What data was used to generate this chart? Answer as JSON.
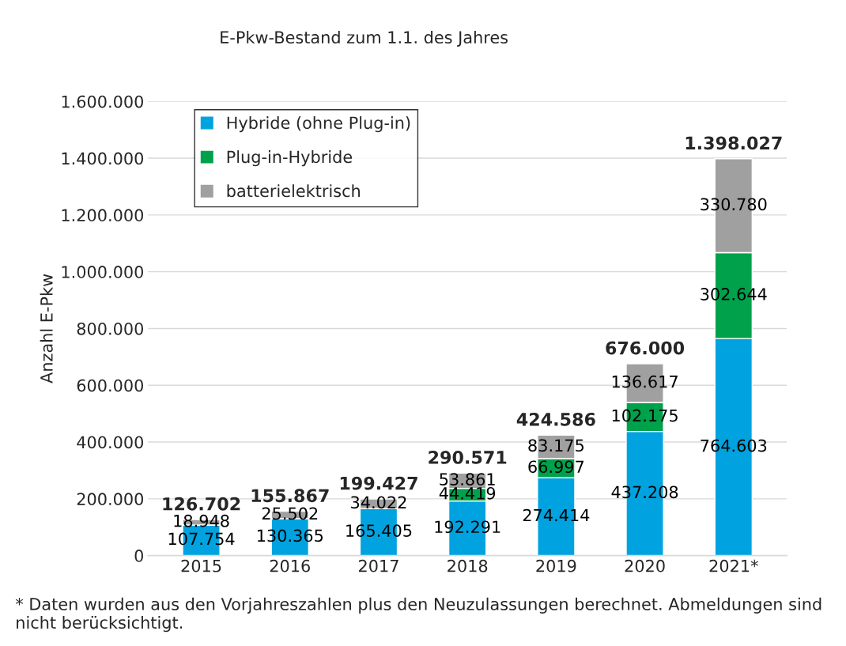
{
  "chart_data": {
    "type": "bar",
    "stacked": true,
    "title": "E-Pkw-Bestand zum 1.1. des Jahres",
    "ylabel": "Anzahl E-Pkw",
    "categories": [
      "2015",
      "2016",
      "2017",
      "2018",
      "2019",
      "2020",
      "2021*"
    ],
    "series": [
      {
        "name": "Hybride (ohne Plug-in)",
        "color": "#00a3df",
        "values": [
          107754,
          130365,
          165405,
          192291,
          274414,
          437208,
          764603
        ],
        "value_labels": [
          "107.754",
          "130.365",
          "165.405",
          "192.291",
          "274.414",
          "437.208",
          "764.603"
        ]
      },
      {
        "name": "Plug-in-Hybride",
        "color": "#00a14b",
        "values": [
          0,
          0,
          0,
          44419,
          66997,
          102175,
          302644
        ],
        "value_labels": [
          null,
          null,
          null,
          "44.419",
          "66.997",
          "102.175",
          "302.644"
        ]
      },
      {
        "name": "batterielektrisch",
        "color": "#a0a0a0",
        "values": [
          18948,
          25502,
          34022,
          53861,
          83175,
          136617,
          330780
        ],
        "value_labels": [
          "18.948",
          "25.502",
          "34.022",
          "53.861",
          "83.175",
          "136.617",
          "330.780"
        ]
      }
    ],
    "totals": [
      "126.702",
      "155.867",
      "199.427",
      "290.571",
      "424.586",
      "676.000",
      "1.398.027"
    ],
    "ylim": [
      0,
      1600000
    ],
    "yticks": [
      0,
      {
        "value": 200000,
        "label": "200.000"
      },
      {
        "value": 400000,
        "label": "400.000"
      },
      {
        "value": 600000,
        "label": "600.000"
      },
      {
        "value": 800000,
        "label": "800.000"
      },
      {
        "value": 1000000,
        "label": "1.000.000"
      },
      {
        "value": 1200000,
        "label": "1.200.000"
      },
      {
        "value": 1400000,
        "label": "1.400.000"
      },
      {
        "value": 1600000,
        "label": "1.600.000"
      }
    ],
    "grid": "y",
    "legend": "top left",
    "annotations": [
      "* Daten wurden aus den Vorjahreszahlen plus den Neuzulassungen berechnet. Abmeldungen sind nicht berücksichtigt."
    ]
  }
}
